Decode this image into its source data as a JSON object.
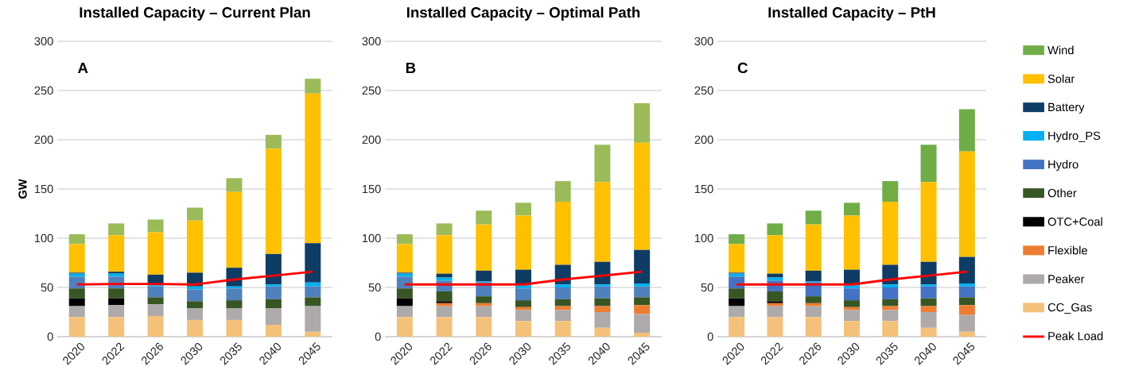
{
  "chart_data": [
    {
      "type": "bar",
      "stacked": true,
      "title": "Installed Capacity – Current Plan",
      "ylabel": "GW",
      "annotations": [
        "A"
      ],
      "categories": [
        "2020",
        "2022",
        "2026",
        "2030",
        "2035",
        "2040",
        "2045"
      ],
      "ylim": [
        0,
        300
      ],
      "yticks": [
        0,
        50,
        100,
        150,
        200,
        250,
        300
      ],
      "grid": "y",
      "series": [
        {
          "color": "#f4c17a",
          "values": [
            20,
            20,
            21,
            17,
            17,
            12,
            5
          ]
        },
        {
          "color": "#aeaaaa",
          "values": [
            11,
            12,
            12,
            12,
            12,
            17,
            26
          ]
        },
        {
          "color": "#ed7d31",
          "values": [
            0,
            0,
            0,
            0,
            0,
            0,
            0
          ]
        },
        {
          "color": "#000000",
          "values": [
            8,
            7,
            0,
            0,
            0,
            0,
            0
          ]
        },
        {
          "color": "#375623",
          "values": [
            10,
            10,
            7,
            7,
            8,
            9,
            9
          ]
        },
        {
          "color": "#4f81bd",
          "values": [
            12,
            12,
            11,
            12,
            12,
            13,
            11
          ]
        },
        {
          "color": "#00b0f0",
          "values": [
            3,
            3,
            1,
            3,
            2,
            2,
            4
          ]
        },
        {
          "color": "#0e3c65",
          "values": [
            1,
            2,
            11,
            14,
            19,
            31,
            40
          ]
        },
        {
          "color": "#ffc000",
          "values": [
            29,
            37,
            43,
            53,
            77,
            107,
            152
          ]
        },
        {
          "color": "#9bbb59",
          "values": [
            10,
            12,
            13,
            13,
            14,
            14,
            15
          ]
        },
        {
          "type": "line",
          "color": "#ff0000",
          "values": [
            53,
            53.5,
            53.5,
            53,
            58,
            62,
            66
          ]
        }
      ]
    },
    {
      "type": "bar",
      "stacked": true,
      "title": "Installed Capacity – Optimal Path",
      "annotations": [
        "B"
      ],
      "categories": [
        "2020",
        "2022",
        "2026",
        "2030",
        "2035",
        "2040",
        "2045"
      ],
      "ylim": [
        0,
        300
      ],
      "yticks": [
        0,
        50,
        100,
        150,
        200,
        250,
        300
      ],
      "grid": "y",
      "series": [
        {
          "color": "#f4c17a",
          "values": [
            20,
            20,
            20,
            16,
            16,
            9,
            4
          ]
        },
        {
          "color": "#aeaaaa",
          "values": [
            11,
            11,
            11,
            11,
            11,
            16,
            19
          ]
        },
        {
          "color": "#ed7d31",
          "values": [
            0,
            3,
            3,
            3,
            4,
            6,
            9
          ]
        },
        {
          "color": "#000000",
          "values": [
            8,
            2,
            0,
            0,
            0,
            0,
            0
          ]
        },
        {
          "color": "#375623",
          "values": [
            10,
            10,
            7,
            7,
            7,
            8,
            8
          ]
        },
        {
          "color": "#4f81bd",
          "values": [
            12,
            11,
            14,
            12,
            12,
            12,
            11
          ]
        },
        {
          "color": "#00b0f0",
          "values": [
            3,
            3,
            1,
            3,
            3,
            2,
            3
          ]
        },
        {
          "color": "#0e3c65",
          "values": [
            1,
            4,
            11,
            16,
            20,
            23,
            34
          ]
        },
        {
          "color": "#ffc000",
          "values": [
            29,
            39,
            47,
            55,
            64,
            81,
            109
          ]
        },
        {
          "color": "#9bbb59",
          "values": [
            10,
            12,
            14,
            13,
            21,
            38,
            40
          ]
        },
        {
          "type": "line",
          "color": "#ff0000",
          "values": [
            53,
            53,
            53,
            53,
            58,
            62,
            66
          ]
        }
      ]
    },
    {
      "type": "bar",
      "stacked": true,
      "title": "Installed Capacity – PtH",
      "annotations": [
        "C"
      ],
      "categories": [
        "2020",
        "2022",
        "2026",
        "2030",
        "2035",
        "2040",
        "2045"
      ],
      "ylim": [
        0,
        300
      ],
      "yticks": [
        0,
        50,
        100,
        150,
        200,
        250,
        300
      ],
      "grid": "y",
      "legend": "right",
      "series": [
        {
          "name": "CC_Gas",
          "color": "#f4c17a",
          "values": [
            20,
            20,
            20,
            16,
            16,
            9,
            5
          ]
        },
        {
          "name": "Peaker",
          "color": "#aeaaaa",
          "values": [
            11,
            11,
            11,
            11,
            11,
            16,
            17
          ]
        },
        {
          "name": "Flexible",
          "color": "#ed7d31",
          "values": [
            0,
            3,
            3,
            3,
            4,
            6,
            10
          ]
        },
        {
          "name": "OTC+Coal",
          "color": "#000000",
          "values": [
            8,
            2,
            0,
            0,
            0,
            0,
            0
          ]
        },
        {
          "name": "Other",
          "color": "#375623",
          "values": [
            10,
            10,
            7,
            7,
            7,
            8,
            8
          ]
        },
        {
          "name": "Hydro",
          "color": "#4472c4",
          "values": [
            12,
            11,
            14,
            12,
            12,
            12,
            11
          ]
        },
        {
          "name": "Hydro_PS",
          "color": "#00b0f0",
          "values": [
            3,
            3,
            1,
            3,
            3,
            2,
            3
          ]
        },
        {
          "name": "Battery",
          "color": "#0e3c65",
          "values": [
            1,
            4,
            11,
            16,
            20,
            23,
            27
          ]
        },
        {
          "name": "Solar",
          "color": "#ffc000",
          "values": [
            29,
            39,
            47,
            55,
            64,
            81,
            107
          ]
        },
        {
          "name": "Wind",
          "color": "#70ad47",
          "values": [
            10,
            12,
            14,
            13,
            21,
            38,
            43
          ]
        },
        {
          "name": "Peak Load",
          "type": "line",
          "color": "#ff0000",
          "values": [
            53,
            53,
            53,
            53,
            58,
            62,
            66
          ]
        }
      ]
    }
  ]
}
